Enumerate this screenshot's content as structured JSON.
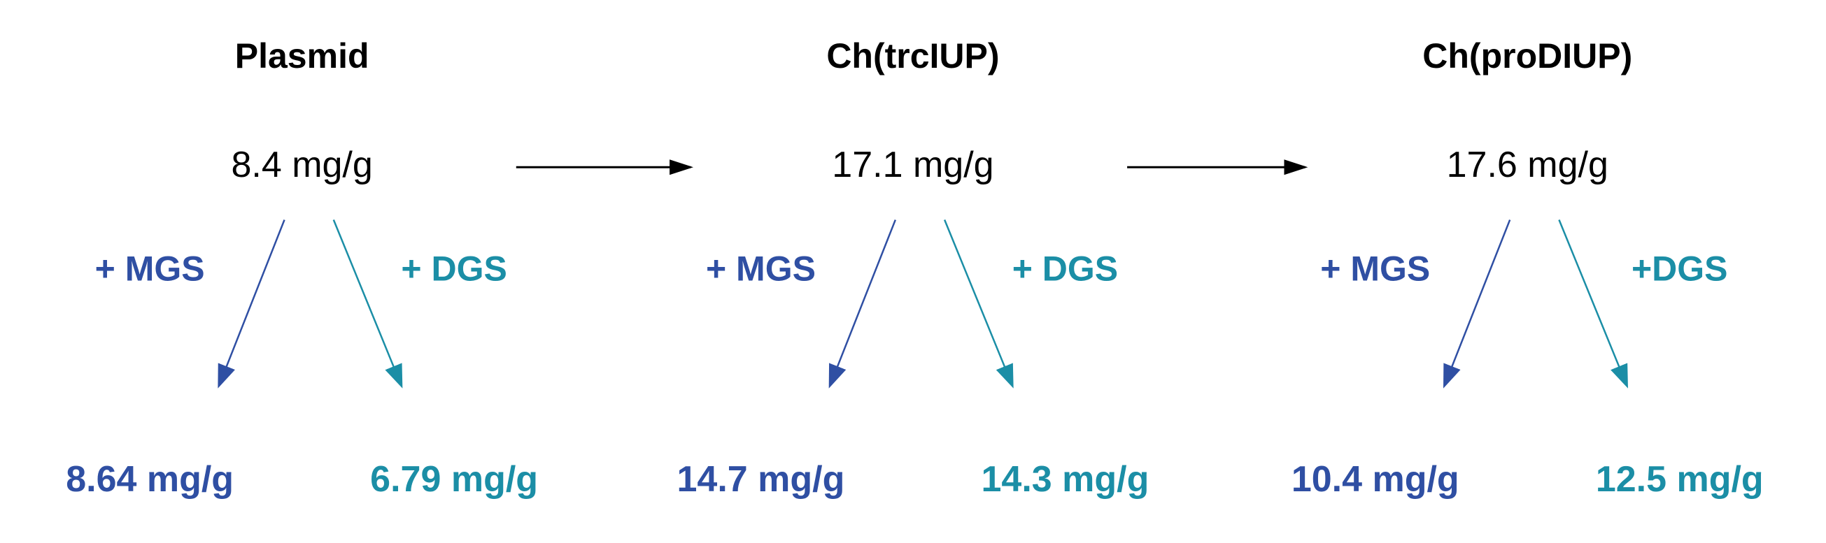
{
  "columns": [
    {
      "title": "Plasmid",
      "value": "8.4 mg/g",
      "mgs_label": "+ MGS",
      "dgs_label": "+ DGS",
      "mgs_value": "8.64 mg/g",
      "dgs_value": "6.79 mg/g"
    },
    {
      "title": "Ch(trcIUP)",
      "value": "17.1 mg/g",
      "mgs_label": "+ MGS",
      "dgs_label": "+ DGS",
      "mgs_value": "14.7 mg/g",
      "dgs_value": "14.3 mg/g"
    },
    {
      "title": "Ch(proDIUP)",
      "value": "17.6 mg/g",
      "mgs_label": "+ MGS",
      "dgs_label": "+DGS",
      "mgs_value": "10.4 mg/g",
      "dgs_value": "12.5 mg/g"
    }
  ]
}
